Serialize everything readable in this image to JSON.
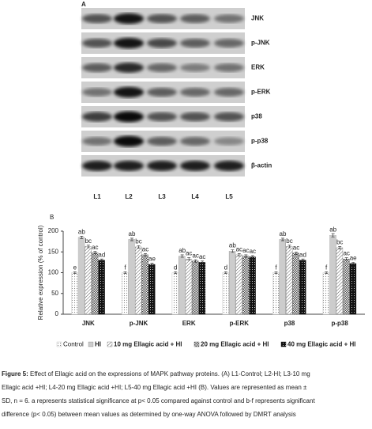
{
  "panel_a": {
    "label": "A",
    "proteins": [
      "JNK",
      "p-JNK",
      "ERK",
      "p-ERK",
      "p38",
      "p-p38",
      "β-actin"
    ],
    "lanes": [
      "L1",
      "L2",
      "L3",
      "L4",
      "L5"
    ]
  },
  "chart_data": {
    "type": "bar",
    "panel_label": "B",
    "y_label": "Relative expression (% of control)",
    "categories": [
      "JNK",
      "p-JNK",
      "ERK",
      "p-ERK",
      "p38",
      "p-p38"
    ],
    "ylim": [
      0,
      200
    ],
    "yticks": [
      0,
      50,
      100,
      150,
      200
    ],
    "series": [
      {
        "name": "Control",
        "color": "#bbbbbb",
        "pattern": "dots",
        "values": [
          100,
          100,
          100,
          100,
          100,
          100
        ],
        "errors": [
          2,
          2,
          2,
          2,
          2,
          2
        ],
        "letters": [
          "e",
          "f",
          "d",
          "d",
          "f",
          "f"
        ]
      },
      {
        "name": "HI",
        "color": "#999999",
        "pattern": "fine-dots",
        "values": [
          185,
          180,
          140,
          152,
          180,
          190
        ],
        "errors": [
          3,
          3,
          3,
          3,
          3,
          4
        ],
        "letters": [
          "ab",
          "ab",
          "ab",
          "ab",
          "ab",
          "ab"
        ]
      },
      {
        "name": "10 mg Ellagic acid + HI",
        "color": "#777777",
        "pattern": "hatch",
        "values": [
          163,
          162,
          133,
          143,
          163,
          160
        ],
        "errors": [
          3,
          3,
          3,
          3,
          3,
          3
        ],
        "letters": [
          "bc",
          "bc",
          "ac",
          "ac",
          "bc",
          "bc"
        ]
      },
      {
        "name": "20 mg Ellagic acid + HI",
        "color": "#555555",
        "pattern": "checks",
        "values": [
          148,
          143,
          128,
          140,
          147,
          133
        ],
        "errors": [
          3,
          3,
          3,
          3,
          3,
          3
        ],
        "letters": [
          "ac",
          "ac",
          "ac",
          "ac",
          "ac",
          "ac"
        ]
      },
      {
        "name": "40 mg Ellagic acid + HI",
        "color": "#111111",
        "pattern": "diamonds",
        "values": [
          130,
          120,
          125,
          138,
          130,
          122
        ],
        "errors": [
          3,
          3,
          3,
          3,
          3,
          3
        ],
        "letters": [
          "ad",
          "ae",
          "ac",
          "ac",
          "ad",
          "ae"
        ]
      }
    ]
  },
  "caption": {
    "label": "Figure 5:",
    "lines": [
      "Effect of Ellagic acid on the expressions of MAPK pathway proteins. (A) L1-Control; L2-HI; L3-10 mg",
      "Ellagic acid +HI; L4-20 mg Ellagic acid +HI; L5-40 mg Ellagic acid +HI (B). Values are represented as mean ±",
      "SD, n = 6. a represents statistical significance at p< 0.05 compared against control and b-f represents significant",
      "difference (p< 0.05) between mean values as determined by one-way ANOVA followed by DMRT analysis"
    ]
  }
}
